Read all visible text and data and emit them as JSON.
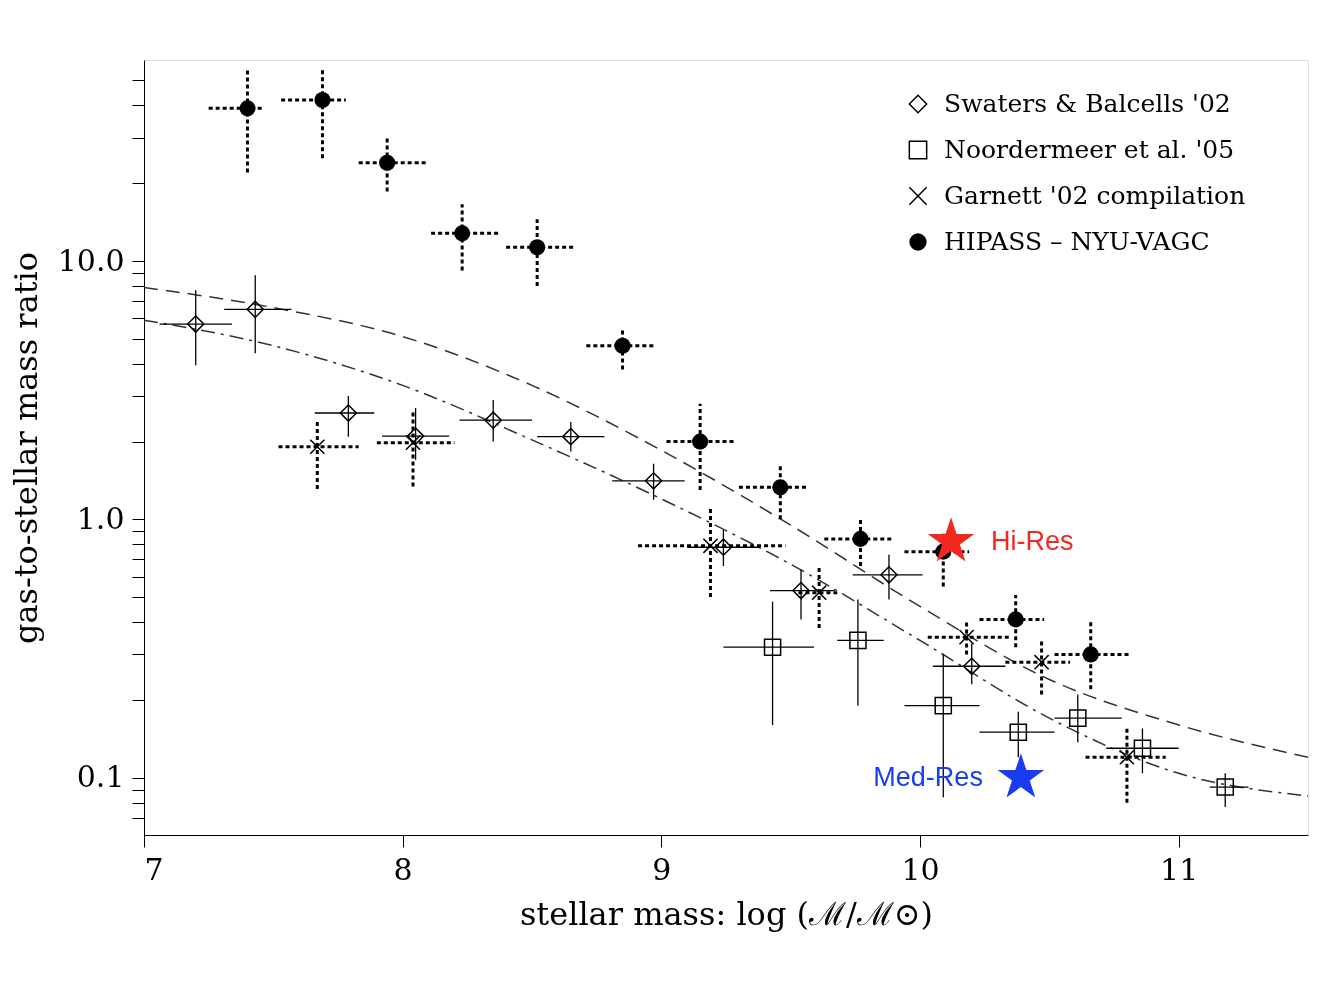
{
  "chart_data": {
    "type": "scatter",
    "xlabel": "stellar mass: log (ℳ/ℳ⊙)",
    "ylabel": "gas-to-stellar mass ratio",
    "xlim": [
      7,
      11.5
    ],
    "ylim": [
      0.06,
      60
    ],
    "log": "y",
    "grid": false,
    "legend": "top right",
    "xticks": [
      7,
      8,
      9,
      10,
      11
    ],
    "yticks": [
      {
        "value": 0.07,
        "label": null
      },
      {
        "value": 0.08,
        "label": null
      },
      {
        "value": 0.09,
        "label": null
      },
      {
        "value": 0.1,
        "label": "0.1"
      },
      {
        "value": 0.2,
        "label": null
      },
      {
        "value": 0.3,
        "label": null
      },
      {
        "value": 0.4,
        "label": null
      },
      {
        "value": 0.5,
        "label": null
      },
      {
        "value": 0.6,
        "label": null
      },
      {
        "value": 0.7,
        "label": null
      },
      {
        "value": 0.8,
        "label": null
      },
      {
        "value": 0.9,
        "label": null
      },
      {
        "value": 1,
        "label": "1.0"
      },
      {
        "value": 2,
        "label": null
      },
      {
        "value": 3,
        "label": null
      },
      {
        "value": 4,
        "label": null
      },
      {
        "value": 5,
        "label": null
      },
      {
        "value": 6,
        "label": null
      },
      {
        "value": 7,
        "label": null
      },
      {
        "value": 8,
        "label": null
      },
      {
        "value": 9,
        "label": null
      },
      {
        "value": 10,
        "label": "10.0"
      },
      {
        "value": 20,
        "label": null
      },
      {
        "value": 30,
        "label": null
      },
      {
        "value": 40,
        "label": null
      },
      {
        "value": 50,
        "label": null
      }
    ],
    "series": [
      {
        "name": "Swaters & Balcells '02",
        "marker": "diamond",
        "color": "#000000",
        "line_style": "solid",
        "x": [
          7.2,
          7.43,
          7.79,
          8.05,
          8.35,
          8.65,
          8.97,
          9.24,
          9.54,
          9.88,
          10.2
        ],
        "values": [
          5.7,
          6.5,
          2.58,
          2.1,
          2.42,
          2.09,
          1.41,
          0.78,
          0.53,
          0.61,
          0.27
        ],
        "errors": [
          [
            3.95,
            7.7
          ],
          [
            4.4,
            8.8
          ],
          [
            2.09,
            3.0
          ],
          [
            1.7,
            2.7
          ],
          [
            2.0,
            2.9
          ],
          [
            1.83,
            2.38
          ],
          [
            1.19,
            1.64
          ],
          [
            0.66,
            0.91
          ],
          [
            0.41,
            0.64
          ],
          [
            0.49,
            0.73
          ],
          [
            0.23,
            0.33
          ]
        ],
        "xerrors": [
          [
            7.06,
            7.34
          ],
          [
            7.31,
            7.57
          ],
          [
            7.66,
            7.89
          ],
          [
            7.92,
            8.18
          ],
          [
            8.22,
            8.5
          ],
          [
            8.52,
            8.78
          ],
          [
            8.81,
            9.09
          ],
          [
            9.1,
            9.38
          ],
          [
            9.42,
            9.67
          ],
          [
            9.74,
            10.01
          ],
          [
            10.05,
            10.33
          ]
        ]
      },
      {
        "name": "Noordermeer et al. '05",
        "marker": "square",
        "color": "#000000",
        "line_style": "solid",
        "x": [
          9.43,
          9.76,
          10.09,
          10.38,
          10.61,
          10.86,
          11.18
        ],
        "values": [
          0.32,
          0.34,
          0.19,
          0.15,
          0.17,
          0.13,
          0.092
        ],
        "errors": [
          [
            0.16,
            0.48
          ],
          [
            0.19,
            0.49
          ],
          [
            0.084,
            0.3
          ],
          [
            0.12,
            0.18
          ],
          [
            0.137,
            0.21
          ],
          [
            0.104,
            0.155
          ],
          [
            0.077,
            0.104
          ]
        ],
        "xerrors": [
          [
            9.24,
            9.59
          ],
          [
            9.68,
            9.86
          ],
          [
            9.94,
            10.23
          ],
          [
            10.23,
            10.52
          ],
          [
            10.52,
            10.78
          ],
          [
            10.72,
            11.0
          ],
          [
            11.12,
            11.27
          ]
        ]
      },
      {
        "name": "Garnett '02 compilation",
        "marker": "cross",
        "color": "#000000",
        "line_style": "dotted",
        "x": [
          7.67,
          8.04,
          9.19,
          9.61,
          10.18,
          10.47,
          10.8
        ],
        "values": [
          1.91,
          1.98,
          0.79,
          0.52,
          0.35,
          0.28,
          0.12
        ],
        "errors": [
          [
            1.31,
            2.38
          ],
          [
            1.34,
            2.65
          ],
          [
            0.5,
            1.1
          ],
          [
            0.38,
            0.65
          ],
          [
            0.3,
            0.41
          ],
          [
            0.21,
            0.34
          ],
          [
            0.08,
            0.155
          ]
        ],
        "xerrors": [
          [
            7.52,
            7.83
          ],
          [
            7.9,
            8.2
          ],
          [
            8.91,
            9.48
          ],
          [
            9.53,
            9.68
          ],
          [
            10.03,
            10.35
          ],
          [
            10.33,
            10.58
          ],
          [
            10.64,
            10.95
          ]
        ]
      },
      {
        "name": "HIPASS – NYU-VAGC",
        "marker": "circle",
        "color": "#000000",
        "line_style": "dotted",
        "x": [
          7.4,
          7.69,
          7.94,
          8.23,
          8.52,
          8.85,
          9.15,
          9.46,
          9.77,
          10.09,
          10.37,
          10.66
        ],
        "values": [
          39,
          42,
          24,
          12.8,
          11.3,
          4.7,
          2.0,
          1.33,
          0.84,
          0.75,
          0.41,
          0.3
        ],
        "errors": [
          [
            22,
            56
          ],
          [
            25,
            56
          ],
          [
            18.6,
            30
          ],
          [
            9.2,
            16.6
          ],
          [
            8.0,
            14.5
          ],
          [
            3.8,
            5.4
          ],
          [
            1.3,
            2.8
          ],
          [
            1.0,
            1.62
          ],
          [
            0.66,
            1.02
          ],
          [
            0.55,
            0.88
          ],
          [
            0.32,
            0.51
          ],
          [
            0.22,
            0.41
          ]
        ],
        "xerrors": [
          [
            7.25,
            7.46
          ],
          [
            7.53,
            7.78
          ],
          [
            7.83,
            8.09
          ],
          [
            8.11,
            8.38
          ],
          [
            8.4,
            8.67
          ],
          [
            8.71,
            8.97
          ],
          [
            9.02,
            9.29
          ],
          [
            9.3,
            9.57
          ],
          [
            9.63,
            9.89
          ],
          [
            9.94,
            10.19
          ],
          [
            10.23,
            10.48
          ],
          [
            10.52,
            10.81
          ]
        ]
      },
      {
        "type": "line",
        "line_style": "dashed",
        "color": "#333333",
        "x": [
          7.0,
          7.5,
          8.0,
          8.5,
          9.0,
          9.5,
          10.0,
          10.5,
          11.0,
          11.5
        ],
        "values": [
          7.9,
          6.6,
          5.1,
          3.3,
          1.85,
          0.95,
          0.46,
          0.24,
          0.16,
          0.12
        ]
      },
      {
        "type": "line",
        "line_style": "dashdot",
        "color": "#333333",
        "x": [
          7.0,
          7.5,
          8.0,
          8.5,
          9.0,
          9.5,
          10.0,
          10.5,
          11.0,
          11.5
        ],
        "values": [
          5.9,
          4.7,
          3.3,
          2.03,
          1.2,
          0.67,
          0.34,
          0.17,
          0.104,
          0.085
        ]
      },
      {
        "name": "Hi-Res",
        "marker": "star",
        "color": "#f0281e",
        "x": [
          10.12
        ],
        "values": [
          0.82
        ]
      },
      {
        "name": "Med-Res",
        "marker": "star",
        "color": "#1a3cf0",
        "x": [
          10.39
        ],
        "values": [
          0.1
        ]
      }
    ]
  }
}
